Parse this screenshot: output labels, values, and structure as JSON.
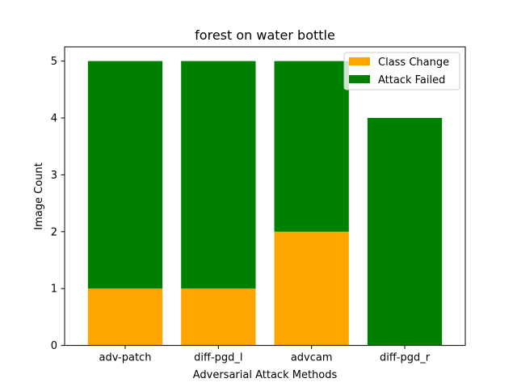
{
  "chart_data": {
    "type": "bar",
    "stacked": true,
    "title": "forest on water bottle",
    "xlabel": "Adversarial Attack Methods",
    "ylabel": "Image Count",
    "categories": [
      "adv-patch",
      "diff-pgd_l",
      "advcam",
      "diff-pgd_r"
    ],
    "series": [
      {
        "name": "Class Change",
        "color": "#ffa500",
        "values": [
          1,
          1,
          2,
          0
        ]
      },
      {
        "name": "Attack Failed",
        "color": "#008000",
        "values": [
          4,
          4,
          3,
          4
        ]
      }
    ],
    "ylim": [
      0,
      5.25
    ],
    "yticks": [
      0,
      1,
      2,
      3,
      4,
      5
    ],
    "grid": false,
    "legend_position": "top-right"
  }
}
